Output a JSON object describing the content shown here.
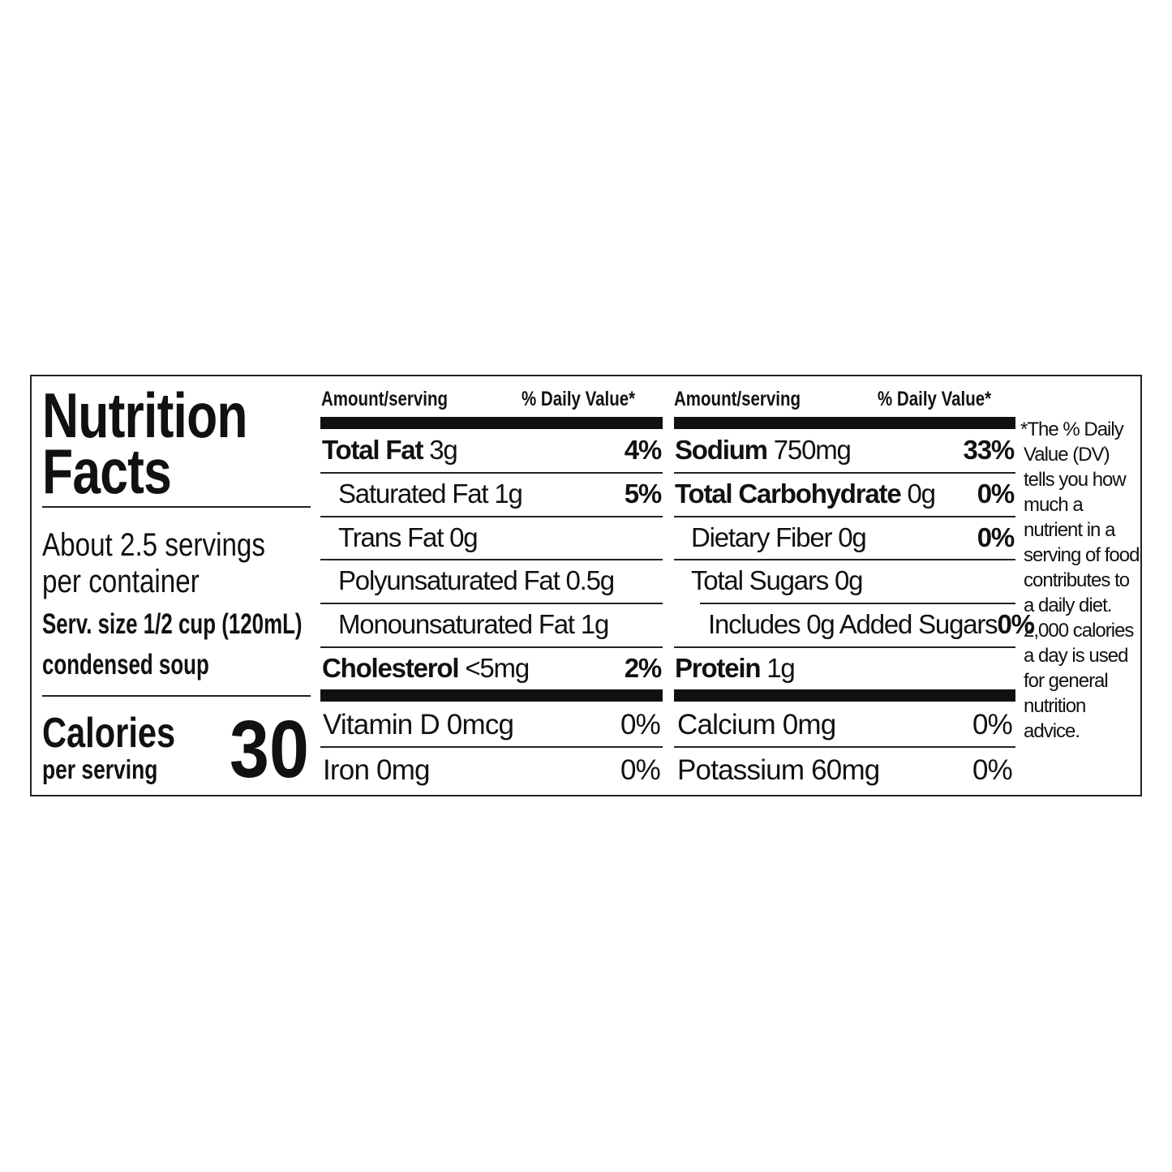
{
  "label": {
    "title_line1": "Nutrition",
    "title_line2": "Facts",
    "servings_line1": "About 2.5 servings",
    "servings_line2": "per container",
    "serving_size_line1": "Serv. size 1/2 cup (120mL)",
    "serving_size_line2": "condensed soup",
    "calories_label": "Calories",
    "calories_sub": "per serving",
    "calories_value": "30"
  },
  "columns": [
    {
      "header_amount": "Amount/serving",
      "header_dv": "% Daily Value*",
      "rows": [
        {
          "name": "Total Fat",
          "amount": "3g",
          "dv": "4%"
        },
        {
          "name": "Saturated Fat",
          "amount": "1g",
          "dv": "5%"
        },
        {
          "name": "Trans Fat",
          "amount": "0g",
          "dv": ""
        },
        {
          "name": "Polyunsaturated Fat",
          "amount": "0.5g",
          "dv": ""
        },
        {
          "name": "Monounsaturated Fat",
          "amount": "1g",
          "dv": ""
        },
        {
          "name": "Cholesterol",
          "amount": "<5mg",
          "dv": "2%"
        }
      ],
      "vitamins": [
        {
          "text": "Vitamin D 0mcg",
          "dv": "0%"
        },
        {
          "text": "Iron 0mg",
          "dv": "0%"
        }
      ]
    },
    {
      "header_amount": "Amount/serving",
      "header_dv": "% Daily Value*",
      "rows": [
        {
          "name": "Sodium",
          "amount": "750mg",
          "dv": "33%"
        },
        {
          "name": "Total Carbohydrate",
          "amount": "0g",
          "dv": "0%"
        },
        {
          "name": "Dietary Fiber",
          "amount": "0g",
          "dv": "0%"
        },
        {
          "name": "Total Sugars",
          "amount": "0g",
          "dv": ""
        },
        {
          "name": "Includes 0g Added Sugars",
          "amount": "",
          "dv": "0%"
        },
        {
          "name": "Protein",
          "amount": "1g",
          "dv": ""
        }
      ],
      "vitamins": [
        {
          "text": "Calcium 0mg",
          "dv": "0%"
        },
        {
          "text": "Potassium 60mg",
          "dv": "0%"
        }
      ]
    }
  ],
  "footnote_lines": [
    "*The % Daily",
    "Value (DV)",
    "tells you how",
    "much a",
    "nutrient in a",
    "serving of food",
    "contributes to",
    "a daily diet.",
    "2,000 calories",
    "a day is used",
    "for general",
    "nutrition",
    "advice."
  ]
}
